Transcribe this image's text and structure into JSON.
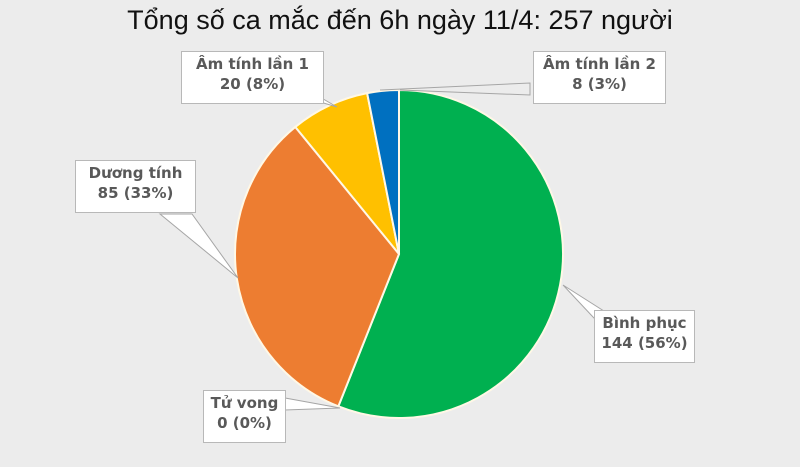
{
  "chart_data": {
    "type": "pie",
    "title": "Tổng số ca mắc đến 6h ngày 11/4: 257 người",
    "total": 257,
    "categories": [
      "Bình phục",
      "Tử vong",
      "Dương tính",
      "Âm tính lần 1",
      "Âm tính lần 2"
    ],
    "values": [
      144,
      0,
      85,
      20,
      8
    ],
    "percents": [
      56,
      0,
      33,
      8,
      3
    ],
    "colors": [
      "#00b050",
      "#7f7f7f",
      "#ed7d31",
      "#ffc000",
      "#0070c0"
    ],
    "legend": "none (callout data labels)"
  },
  "labels": {
    "am1": {
      "name": "Âm tính lần 1",
      "value": "20 (8%)"
    },
    "am2": {
      "name": "Âm tính lần 2",
      "value": "8 (3%)"
    },
    "duong": {
      "name": "Dương tính",
      "value": "85 (33%)"
    },
    "binh": {
      "name": "Bình phục",
      "value": "144 (56%)"
    },
    "tuvong": {
      "name": "Tử vong",
      "value": "0 (0%)"
    }
  }
}
